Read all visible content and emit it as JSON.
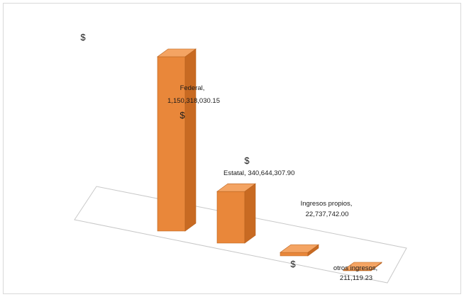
{
  "chart_data": {
    "type": "bar",
    "style": "3d-column",
    "title": "",
    "xlabel": "",
    "ylabel": "",
    "grid": false,
    "legend": "none",
    "bar_color": "#e9873a",
    "categories": [
      "Federal",
      "Estatal",
      "Ingresos propios",
      "otros ingresos"
    ],
    "values": [
      1150318030.15,
      340644307.9,
      22737742.0,
      211119.23
    ],
    "data_labels": [
      {
        "name": "Federal,",
        "value": "1,150,318,030.15",
        "currency": "$"
      },
      {
        "name": "Estatal,",
        "value": "340,644,307.90",
        "currency": "$"
      },
      {
        "name": "Ingresos propios,",
        "value": "22,737,742.00",
        "currency": "$"
      },
      {
        "name": "otros ingresos,",
        "value": "211,119.23",
        "currency": "$"
      }
    ],
    "stray_currency_symbol": "$"
  }
}
